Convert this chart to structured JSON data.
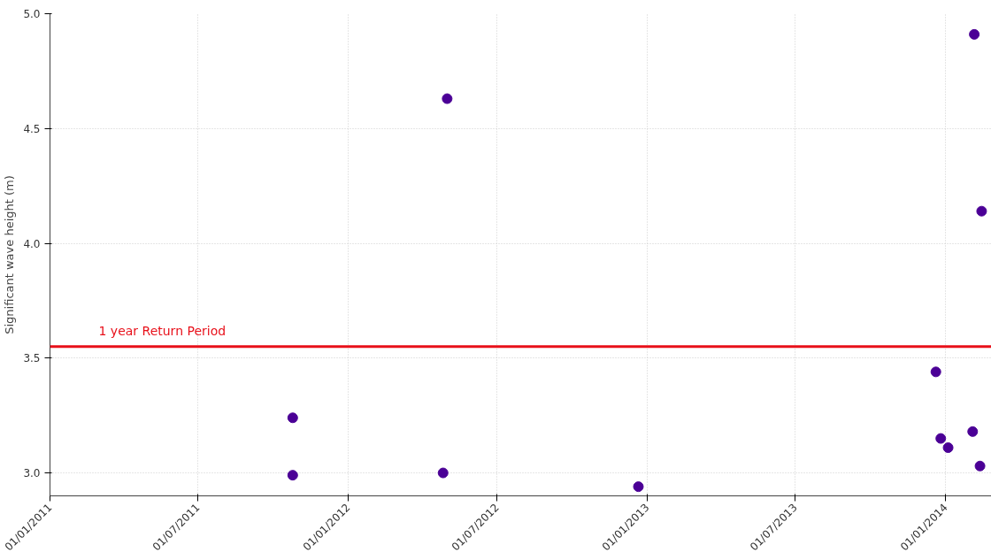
{
  "chart_data": {
    "type": "scatter",
    "ylabel": "Significant wave height (m)",
    "x": [
      "2011-10-25",
      "2011-10-25",
      "2012-05-01",
      "2012-04-26",
      "2012-12-21",
      "2013-12-20",
      "2013-12-26",
      "2014-01-04",
      "2014-02-05",
      "2014-02-03",
      "2014-02-14",
      "2014-02-12"
    ],
    "series": [
      {
        "color": "#4b0096",
        "values": [
          3.24,
          2.99,
          4.63,
          3.0,
          2.94,
          3.44,
          3.15,
          3.11,
          4.91,
          3.18,
          4.14,
          3.03
        ]
      }
    ],
    "xlim": [
      "2011-01-01",
      "2014-02-26"
    ],
    "ylim": [
      2.9,
      5.0
    ],
    "xticks": [
      {
        "value": "2011-01-01",
        "label": "01/01/2011"
      },
      {
        "value": "2011-07-01",
        "label": "01/07/2011"
      },
      {
        "value": "2012-01-01",
        "label": "01/01/2012"
      },
      {
        "value": "2012-07-01",
        "label": "01/07/2012"
      },
      {
        "value": "2013-01-01",
        "label": "01/01/2013"
      },
      {
        "value": "2013-07-01",
        "label": "01/07/2013"
      },
      {
        "value": "2014-01-01",
        "label": "01/01/2014"
      }
    ],
    "yticks": [
      {
        "value": 3.0,
        "label": "3.0"
      },
      {
        "value": 3.5,
        "label": "3.5"
      },
      {
        "value": 4.0,
        "label": "4.0"
      },
      {
        "value": 4.5,
        "label": "4.5"
      },
      {
        "value": 5.0,
        "label": "5.0"
      }
    ],
    "ref_lines": [
      {
        "axis": "y",
        "value": 3.55,
        "label": "1 year Return Period",
        "color": "#e8101a"
      }
    ],
    "grid": true,
    "marker": "circle"
  }
}
